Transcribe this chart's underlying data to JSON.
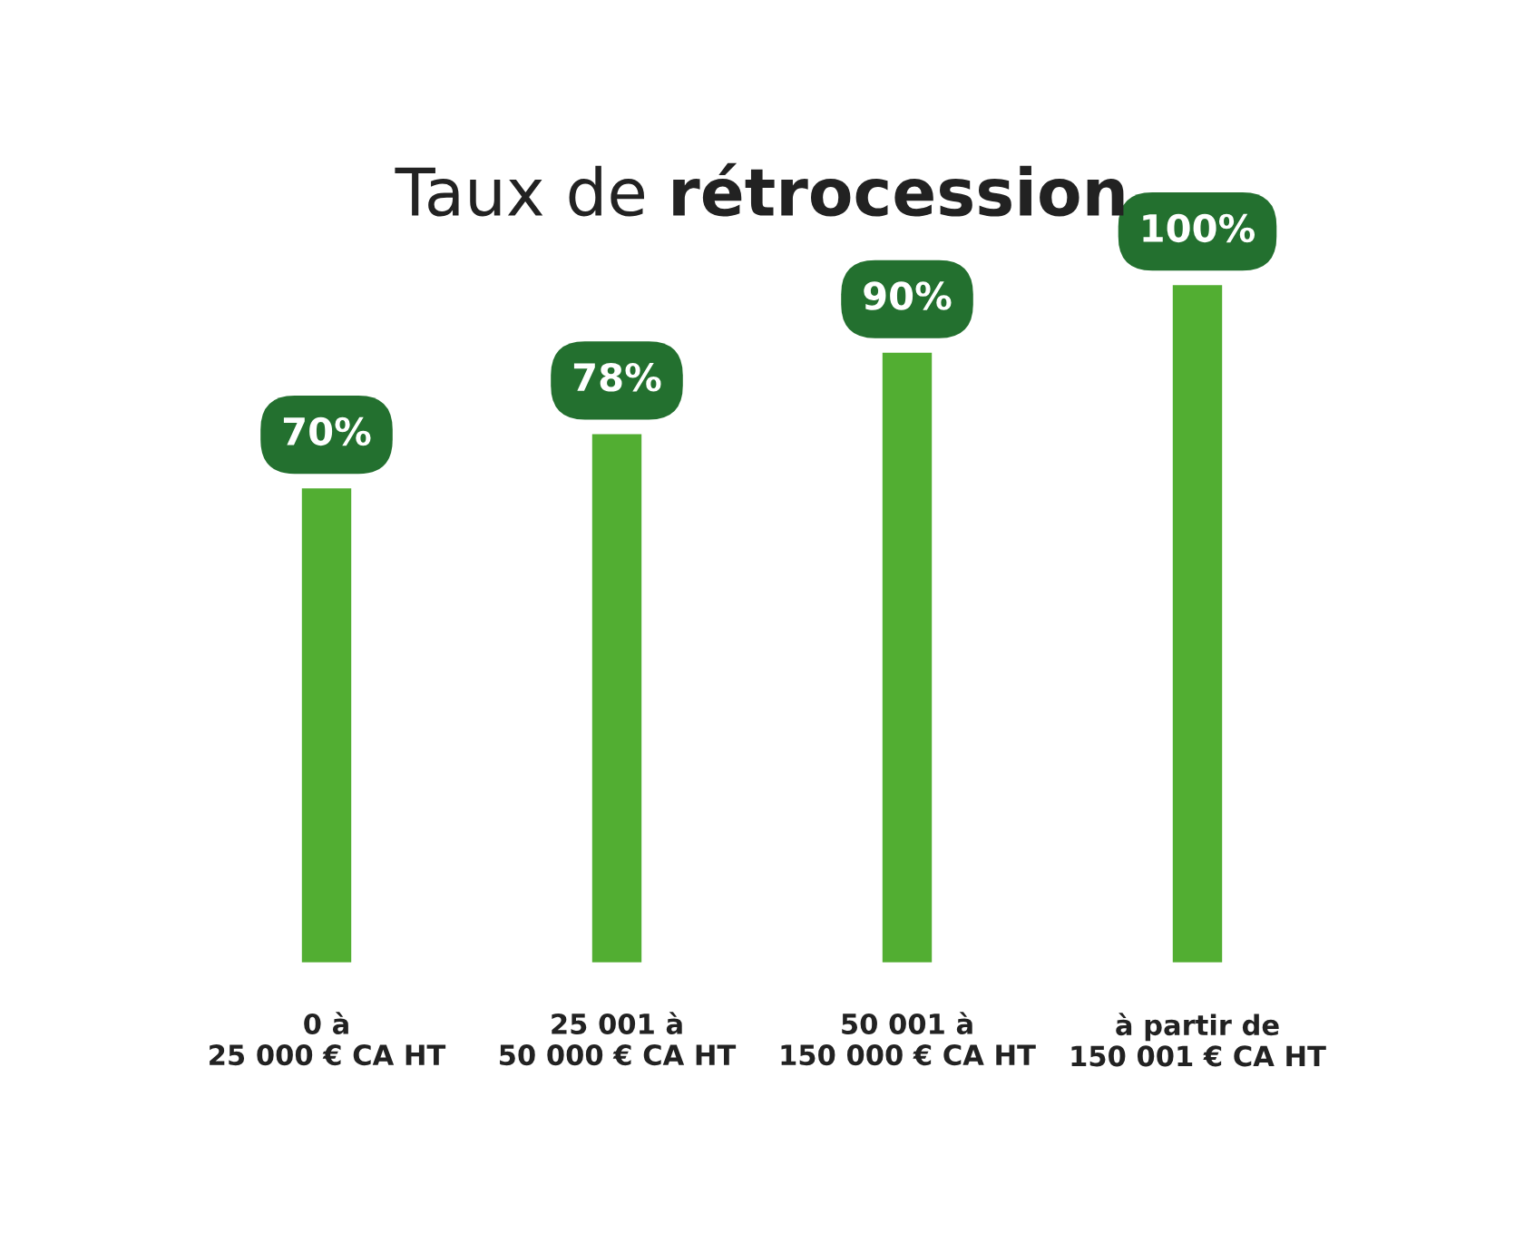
{
  "chart_data": {
    "type": "bar",
    "title": "Taux de rétrocession",
    "categories": [
      "0 à\n25 000 € CA HT",
      "25 001 à\n50 000 € CA HT",
      "50 001 à\n150 000 € CA HT",
      "à partir de\n150 001 € CA HT"
    ],
    "values": [
      70,
      78,
      90,
      100
    ],
    "color": "#52ae32",
    "value_labels": [
      "70%",
      "78%",
      "90%",
      "100%"
    ]
  }
}
